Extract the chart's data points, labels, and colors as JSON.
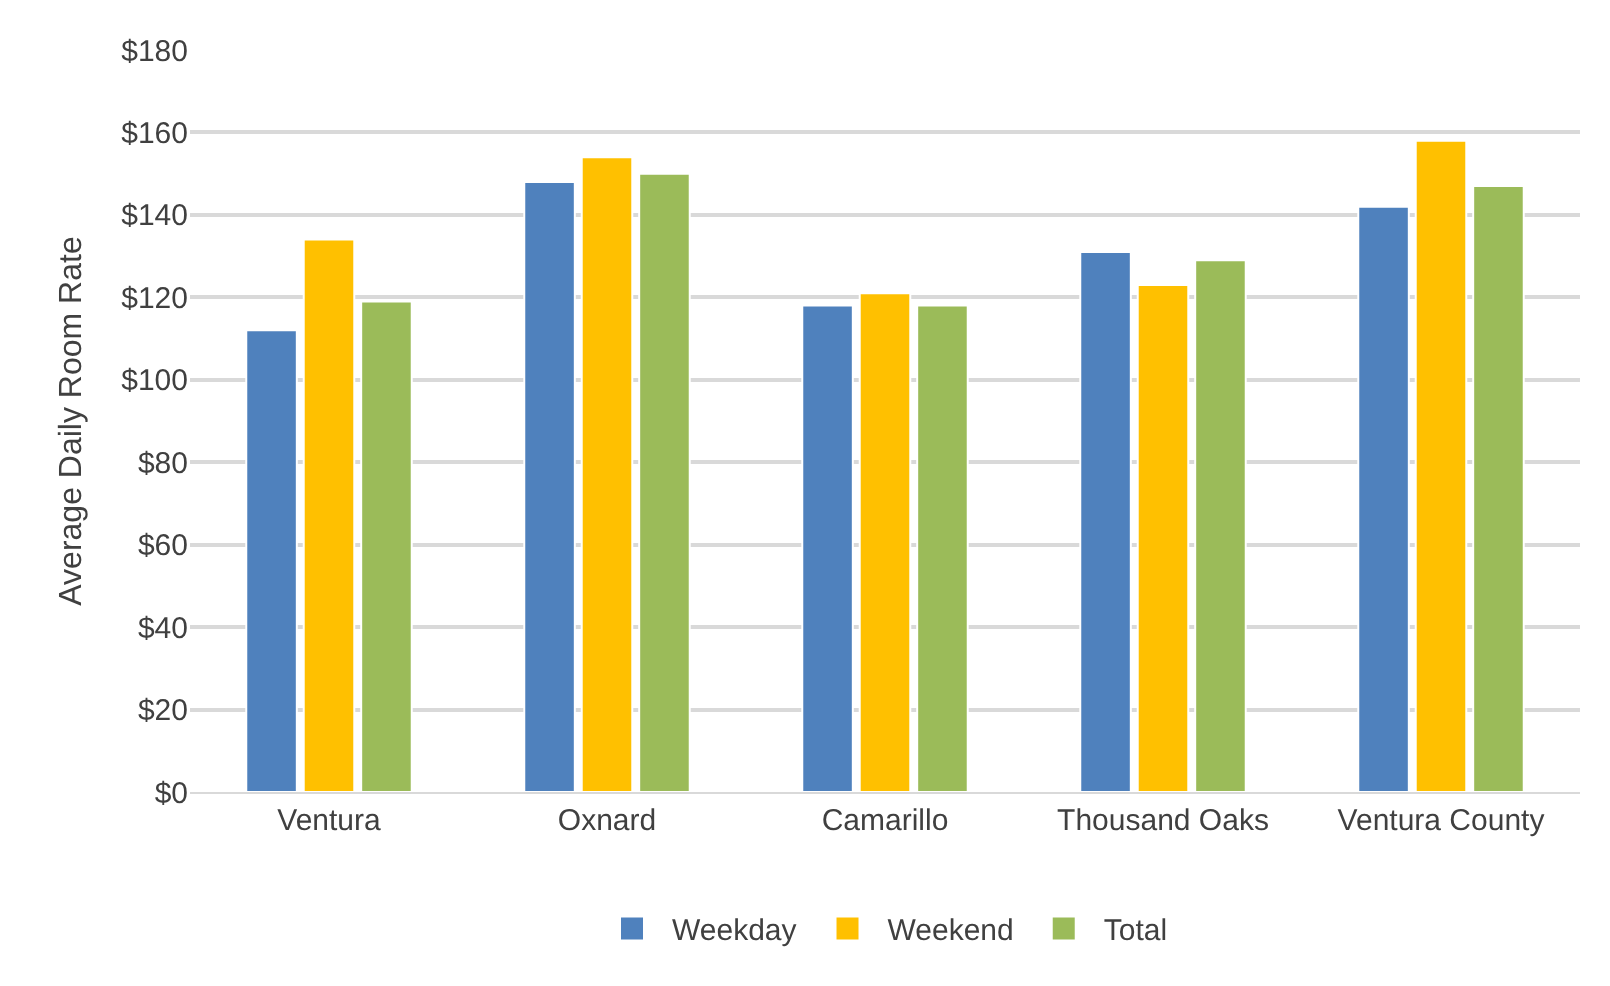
{
  "chart_data": {
    "type": "bar",
    "ylabel": "Average Daily Room Rate",
    "categories": [
      "Ventura",
      "Oxnard",
      "Camarillo",
      "Thousand Oaks",
      "Ventura County"
    ],
    "series": [
      {
        "name": "Weekday",
        "color": "#4f81bd",
        "values": [
          112,
          148,
          118,
          131,
          142
        ]
      },
      {
        "name": "Weekend",
        "color": "#ffc000",
        "values": [
          134,
          154,
          121,
          123,
          158
        ]
      },
      {
        "name": "Total",
        "color": "#9bbb59",
        "values": [
          119,
          150,
          118,
          129,
          147
        ]
      }
    ],
    "ylim": [
      0,
      180
    ],
    "yticks": [
      {
        "value": 0,
        "label": "$0"
      },
      {
        "value": 20,
        "label": "$20"
      },
      {
        "value": 40,
        "label": "$40"
      },
      {
        "value": 60,
        "label": "$60"
      },
      {
        "value": 80,
        "label": "$80"
      },
      {
        "value": 100,
        "label": "$100"
      },
      {
        "value": 120,
        "label": "$120"
      },
      {
        "value": 140,
        "label": "$140"
      },
      {
        "value": 160,
        "label": "$160"
      },
      {
        "value": 180,
        "label": "$180"
      }
    ],
    "grid": "y",
    "legend": "bottom"
  }
}
